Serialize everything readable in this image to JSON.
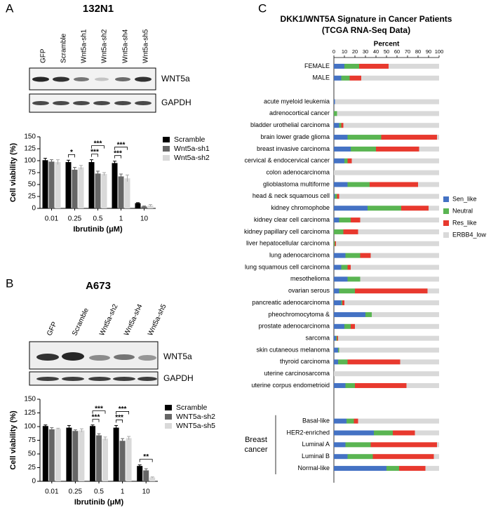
{
  "chart_data": [
    {
      "type": "bar",
      "panel": "A",
      "title": "132N1",
      "blot": {
        "lanes": [
          "GFP",
          "Scramble",
          "Wnt5a-sh1",
          "Wnt5a-sh2",
          "Wnt5a-sh4",
          "Wnt5a-sh5"
        ],
        "bands": [
          "WNT5a",
          "GAPDH"
        ]
      },
      "categories": [
        "0.01",
        "0.25",
        "0.5",
        "1",
        "10"
      ],
      "x_label": "Ibrutinib (μM)",
      "y_label": "Cell viability (%)",
      "ylim": [
        0,
        150
      ],
      "yticks": [
        0,
        25,
        50,
        75,
        100,
        125,
        150
      ],
      "series": [
        {
          "name": "Scramble",
          "color": "#000000",
          "values": [
            101,
            97,
            97,
            95,
            11
          ],
          "errors": [
            4,
            4,
            5,
            4,
            1
          ]
        },
        {
          "name": "Wnt5a-sh1",
          "color": "#666666",
          "values": [
            98,
            81,
            73,
            67,
            4
          ],
          "errors": [
            4,
            5,
            5,
            5,
            1
          ]
        },
        {
          "name": "Wnt5a-sh2",
          "color": "#d9d9d9",
          "values": [
            97,
            86,
            72,
            63,
            6
          ],
          "errors": [
            5,
            4,
            3,
            7,
            2
          ]
        }
      ],
      "annotations": [
        {
          "text": "*",
          "category": "0.25",
          "between": [
            "Scramble",
            "Wnt5a-sh1"
          ]
        },
        {
          "text": "***",
          "category": "0.5",
          "between": [
            "Scramble",
            "Wnt5a-sh1"
          ]
        },
        {
          "text": "***",
          "category": "0.5",
          "between": [
            "Scramble",
            "Wnt5a-sh2"
          ]
        },
        {
          "text": "***",
          "category": "1",
          "between": [
            "Scramble",
            "Wnt5a-sh1"
          ]
        },
        {
          "text": "***",
          "category": "1",
          "between": [
            "Scramble",
            "Wnt5a-sh2"
          ]
        }
      ],
      "legend": "upper right"
    },
    {
      "type": "bar",
      "panel": "B",
      "title": "A673",
      "blot": {
        "lanes": [
          "GFP",
          "Scramble",
          "Wnt5a-sh2",
          "Wnt5a-sh4",
          "Wnt5a-sh5"
        ],
        "bands": [
          "WNT5a",
          "GAPDH"
        ]
      },
      "categories": [
        "0.01",
        "0.25",
        "0.5",
        "1",
        "10"
      ],
      "x_label": "Ibrutinib (μM)",
      "y_label": "Cell viability (%)",
      "ylim": [
        0,
        150
      ],
      "yticks": [
        0,
        25,
        50,
        75,
        100,
        125,
        150
      ],
      "series": [
        {
          "name": "Scramble",
          "color": "#000000",
          "values": [
            101,
            98,
            101,
            98,
            28
          ],
          "errors": [
            2,
            4,
            2,
            4,
            2
          ]
        },
        {
          "name": "WNT5a-sh2",
          "color": "#666666",
          "values": [
            95,
            92,
            84,
            74,
            20
          ],
          "errors": [
            3,
            2,
            3,
            4,
            3
          ]
        },
        {
          "name": "WNT5a-sh5",
          "color": "#d9d9d9",
          "values": [
            96,
            93,
            78,
            79,
            7
          ],
          "errors": [
            1,
            3,
            3,
            3,
            1
          ]
        }
      ],
      "annotations": [
        {
          "text": "***",
          "category": "0.5",
          "between": [
            "Scramble",
            "WNT5a-sh2"
          ]
        },
        {
          "text": "***",
          "category": "0.5",
          "between": [
            "Scramble",
            "WNT5a-sh5"
          ]
        },
        {
          "text": "***",
          "category": "1",
          "between": [
            "Scramble",
            "WNT5a-sh2"
          ]
        },
        {
          "text": "***",
          "category": "1",
          "between": [
            "Scramble",
            "WNT5a-sh5"
          ]
        },
        {
          "text": "**",
          "category": "10",
          "between": [
            "Scramble",
            "WNT5a-sh5"
          ]
        }
      ],
      "legend": "upper right"
    },
    {
      "type": "stacked_barh",
      "panel": "C",
      "title": "DKK1/WNT5A Signature in Cancer Patients",
      "subtitle": "(TCGA RNA-Seq Data)",
      "x_label": "Percent",
      "xlim": [
        0,
        100
      ],
      "xticks": [
        0,
        10,
        20,
        30,
        40,
        50,
        60,
        70,
        80,
        90,
        100
      ],
      "categories": [
        "FEMALE",
        "MALE",
        null,
        "acute myeloid leukemia",
        "adrenocortical cancer",
        "bladder urothelial carcinoma",
        "brain lower grade glioma",
        "breast invasive carcinoma",
        "cervical & endocervical cancer",
        "colon adenocarcinoma",
        "glioblastoma multiforme",
        "head & neck squamous cell",
        "kidney chromophobe",
        "kidney clear cell carcinoma",
        "kidney papillary cell carcinoma",
        "liver hepatocellular carcinoma",
        "lung adenocarcinoma",
        "lung squamous cell carcinoma",
        "mesothelioma",
        "ovarian serous",
        "pancreatic adenocarcinoma",
        "pheochromocytoma &",
        "prostate adenocarcinoma",
        "sarcoma",
        "skin cutaneous melanoma",
        "thyroid carcinoma",
        "uterine carcinosarcoma",
        "uterine corpus endometrioid",
        null,
        null,
        "Basal-like",
        "HER2-enriched",
        "Luminal A",
        "Luminal B",
        "Normal-like"
      ],
      "group_label": [
        "Breast",
        "cancer"
      ],
      "series": [
        {
          "name": "Sen_like",
          "color": "#4472c4",
          "values": [
            10,
            7,
            null,
            1,
            0,
            5,
            13,
            16,
            10,
            0,
            13,
            1,
            32,
            5,
            0,
            0,
            11,
            7,
            13,
            5,
            7,
            30,
            10,
            2,
            4,
            4,
            0,
            11,
            null,
            null,
            12,
            38,
            11,
            13,
            50
          ]
        },
        {
          "name": "Neutral",
          "color": "#5ab552",
          "values": [
            14,
            8,
            null,
            0,
            3,
            2,
            32,
            24,
            3,
            0,
            21,
            2,
            32,
            11,
            9,
            1,
            14,
            6,
            12,
            15,
            1,
            6,
            6,
            1,
            1,
            9,
            0,
            9,
            null,
            null,
            7,
            18,
            24,
            24,
            12
          ]
        },
        {
          "name": "Res_like",
          "color": "#e8392e",
          "values": [
            28,
            11,
            null,
            0,
            0,
            2,
            53,
            41,
            4,
            0,
            46,
            2,
            26,
            9,
            14,
            1,
            10,
            3,
            0,
            69,
            2,
            0,
            4,
            1,
            0,
            50,
            0,
            49,
            null,
            null,
            4,
            21,
            63,
            58,
            25
          ]
        },
        {
          "name": "ERBB4_low",
          "color": "#d9d9d9",
          "values": [
            48,
            74,
            null,
            99,
            97,
            91,
            2,
            19,
            83,
            100,
            20,
            95,
            10,
            75,
            77,
            98,
            65,
            84,
            75,
            11,
            90,
            64,
            80,
            96,
            95,
            37,
            100,
            31,
            null,
            null,
            77,
            23,
            2,
            5,
            13
          ]
        }
      ],
      "legend": "right"
    }
  ]
}
